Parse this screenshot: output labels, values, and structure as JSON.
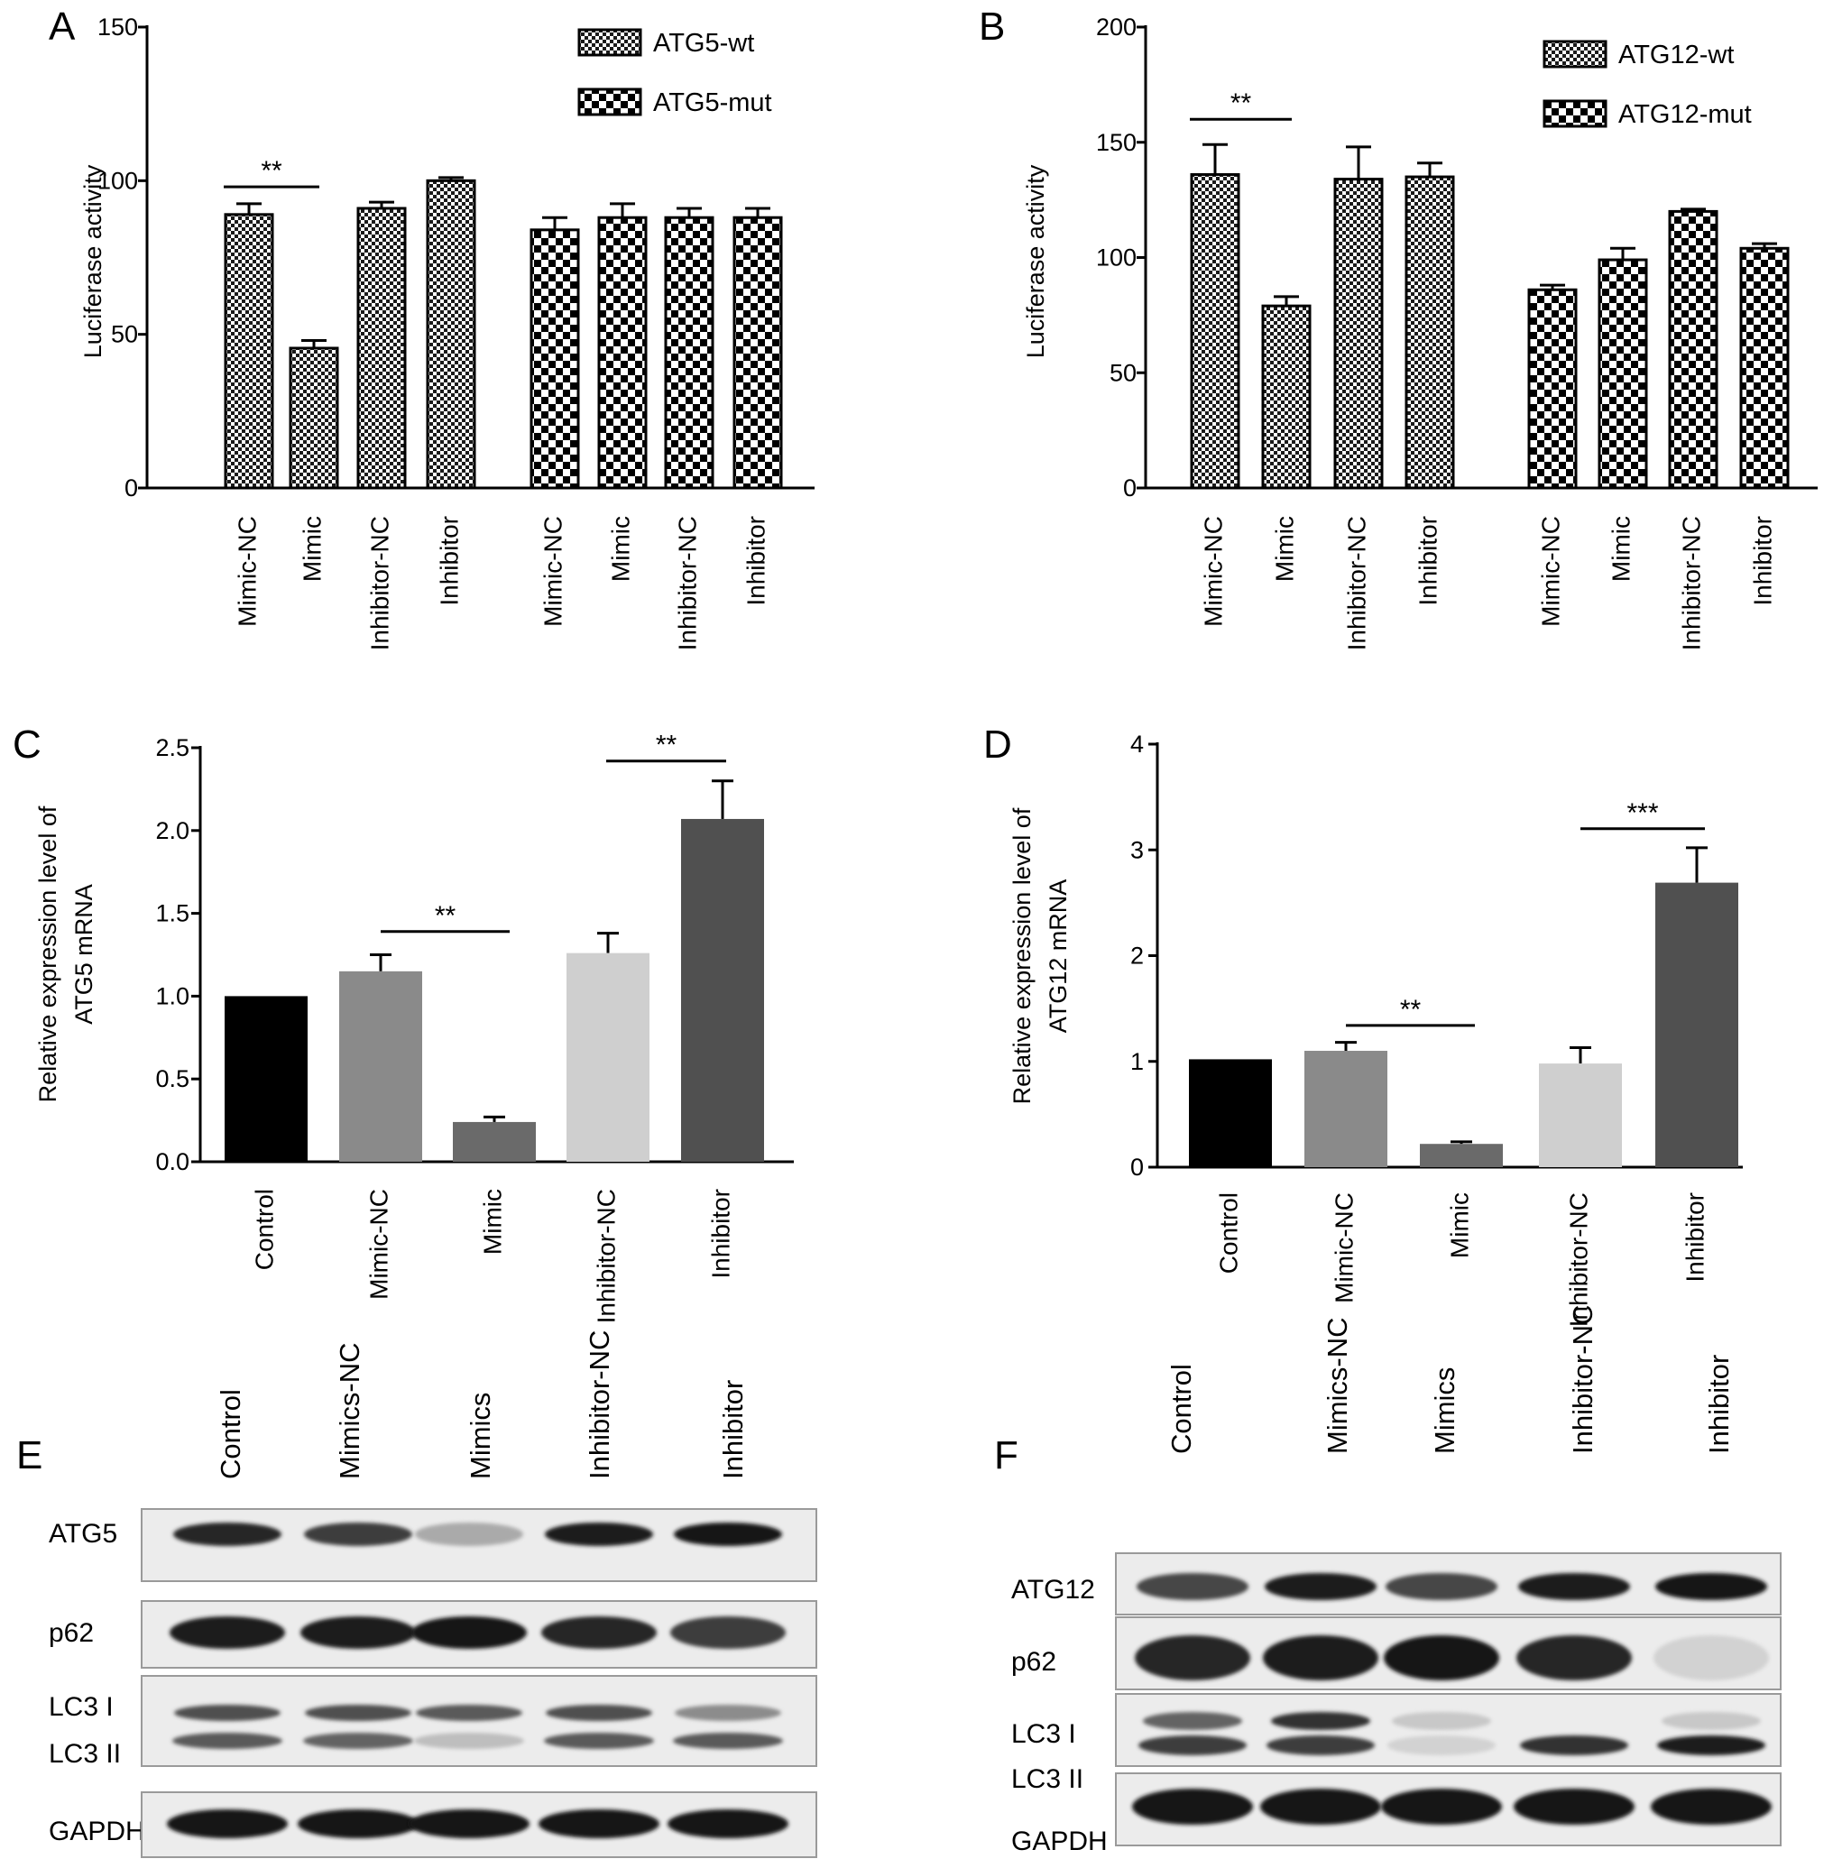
{
  "panels": {
    "A": "A",
    "B": "B",
    "C": "C",
    "D": "D",
    "E": "E",
    "F": "F"
  },
  "chart_data": [
    {
      "id": "A",
      "type": "bar",
      "ylabel": "Luciferase activity",
      "ylim": [
        0,
        150
      ],
      "yticks": [
        0,
        50,
        100,
        150
      ],
      "grid": false,
      "legend_position": "top-right",
      "series": [
        {
          "name": "ATG5-wt",
          "pattern": "fine-check",
          "categories": [
            "Mimic-NC",
            "Mimic",
            "Inhibitor-NC",
            "Inhibitor"
          ],
          "values": [
            89,
            45.5,
            91,
            100
          ],
          "errors": [
            3.5,
            2.5,
            2,
            1
          ]
        },
        {
          "name": "ATG5-mut",
          "pattern": "coarse-check",
          "categories": [
            "Mimic-NC",
            "Mimic",
            "Inhibitor-NC",
            "Inhibitor"
          ],
          "values": [
            84,
            88,
            88,
            88
          ],
          "errors": [
            4,
            4.5,
            3,
            3
          ]
        }
      ],
      "significance": [
        {
          "label": "**",
          "from": 0,
          "to": 1,
          "y": 98
        }
      ]
    },
    {
      "id": "B",
      "type": "bar",
      "ylabel": "Luciferase activity",
      "ylim": [
        0,
        200
      ],
      "yticks": [
        0,
        50,
        100,
        150,
        200
      ],
      "grid": false,
      "legend_position": "top-right",
      "series": [
        {
          "name": "ATG12-wt",
          "pattern": "fine-check",
          "categories": [
            "Mimic-NC",
            "Mimic",
            "Inhibitor-NC",
            "Inhibitor"
          ],
          "values": [
            136,
            79,
            134,
            135
          ],
          "errors": [
            13,
            4,
            14,
            6
          ]
        },
        {
          "name": "ATG12-mut",
          "pattern": "coarse-check",
          "categories": [
            "Mimic-NC",
            "Mimic",
            "Inhibitor-NC",
            "Inhibitor"
          ],
          "values": [
            86,
            99,
            120,
            104
          ],
          "errors": [
            2,
            5,
            1,
            2
          ]
        }
      ],
      "significance": [
        {
          "label": "**",
          "from": 0,
          "to": 1,
          "y": 160
        }
      ]
    },
    {
      "id": "C",
      "type": "bar",
      "ylabel": "Relative expression level of ATG5 mRNA",
      "ylabel_lines": [
        "Relative expression level of",
        "ATG5 mRNA"
      ],
      "ylim": [
        0,
        2.5
      ],
      "yticks": [
        "0.0",
        "0.5",
        "1.0",
        "1.5",
        "2.0",
        "2.5"
      ],
      "grid": false,
      "categories": [
        "Control",
        "Mimic-NC",
        "Mimic",
        "Inhibitor-NC",
        "Inhibitor"
      ],
      "values": [
        1.0,
        1.15,
        0.24,
        1.26,
        2.07
      ],
      "errors": [
        0,
        0.1,
        0.03,
        0.12,
        0.23
      ],
      "colors": [
        "#000000",
        "#8a8a8a",
        "#6a6a6a",
        "#cfcfcf",
        "#505050"
      ],
      "significance": [
        {
          "label": "**",
          "from": 1,
          "to": 2,
          "y": 1.39
        },
        {
          "label": "**",
          "from": 3,
          "to": 4,
          "y": 2.42
        }
      ]
    },
    {
      "id": "D",
      "type": "bar",
      "ylabel": "Relative expression level of ATG12 mRNA",
      "ylabel_lines": [
        "Relative expression level of",
        "ATG12 mRNA"
      ],
      "ylim": [
        0,
        4
      ],
      "yticks": [
        "0",
        "1",
        "2",
        "3",
        "4"
      ],
      "grid": false,
      "categories": [
        "Control",
        "Mimic-NC",
        "Mimic",
        "Inhibitor-NC",
        "Inhibitor"
      ],
      "values": [
        1.02,
        1.1,
        0.22,
        0.98,
        2.69
      ],
      "errors": [
        0,
        0.08,
        0.02,
        0.15,
        0.33
      ],
      "colors": [
        "#000000",
        "#8a8a8a",
        "#6a6a6a",
        "#cfcfcf",
        "#505050"
      ],
      "significance": [
        {
          "label": "**",
          "from": 2,
          "to": 2,
          "y": 1.34
        },
        {
          "label": "***",
          "from": 4,
          "to": 4,
          "y": 3.2
        }
      ]
    }
  ],
  "blots": {
    "E": {
      "lanes": [
        "Control",
        "Mimics-NC",
        "Mimics",
        "Inhibitor-NC",
        "Inhibitor"
      ],
      "rows": [
        "ATG5",
        "p62",
        "LC3 I",
        "LC3 II",
        "GAPDH"
      ]
    },
    "F": {
      "lanes": [
        "Control",
        "Mimics-NC",
        "Mimics",
        "Inhibitor-NC",
        "Inhibitor"
      ],
      "rows": [
        "ATG12",
        "p62",
        "LC3 I",
        "LC3 II",
        "GAPDH"
      ]
    }
  }
}
